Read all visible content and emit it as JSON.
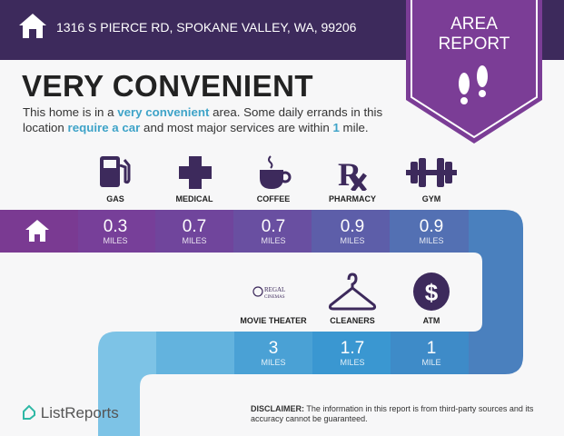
{
  "header": {
    "address": "1316 S PIERCE RD, SPOKANE VALLEY, WA, 99206",
    "badge_line1": "AREA",
    "badge_line2": "REPORT"
  },
  "summary": {
    "title": "VERY CONVENIENT",
    "desc_1": "This home is in a ",
    "desc_hl1": "very convenient",
    "desc_2": " area. Some daily errands in this location ",
    "desc_hl2": "require a car",
    "desc_3": " and most major services are within ",
    "desc_hl3": "1",
    "desc_4": " mile."
  },
  "amenities_row1": [
    {
      "label": "GAS",
      "value": "0.3",
      "unit": "MILES",
      "icon": "gas-pump-icon"
    },
    {
      "label": "MEDICAL",
      "value": "0.7",
      "unit": "MILES",
      "icon": "medical-cross-icon"
    },
    {
      "label": "COFFEE",
      "value": "0.7",
      "unit": "MILES",
      "icon": "coffee-cup-icon"
    },
    {
      "label": "PHARMACY",
      "value": "0.9",
      "unit": "MILES",
      "icon": "rx-icon"
    },
    {
      "label": "GYM",
      "value": "0.9",
      "unit": "MILES",
      "icon": "dumbbell-icon"
    }
  ],
  "amenities_row2": [
    {
      "label": "MOVIE THEATER",
      "value": "3",
      "unit": "MILES",
      "icon": "regal-cinemas-logo",
      "logo_text": "REGAL CINEMAS"
    },
    {
      "label": "CLEANERS",
      "value": "1.7",
      "unit": "MILES",
      "icon": "hanger-icon"
    },
    {
      "label": "ATM",
      "value": "1",
      "unit": "MILE",
      "icon": "dollar-icon"
    }
  ],
  "footer": {
    "logo": "ListReports",
    "disclaimer_label": "DISCLAIMER:",
    "disclaimer": " The information in this report is from third-party sources and its accuracy cannot be guaranteed."
  },
  "colors": {
    "header": "#3d2a5c",
    "badge": "#7b3d96",
    "accent": "#3ea3c8",
    "icon": "#3d2a5c"
  }
}
